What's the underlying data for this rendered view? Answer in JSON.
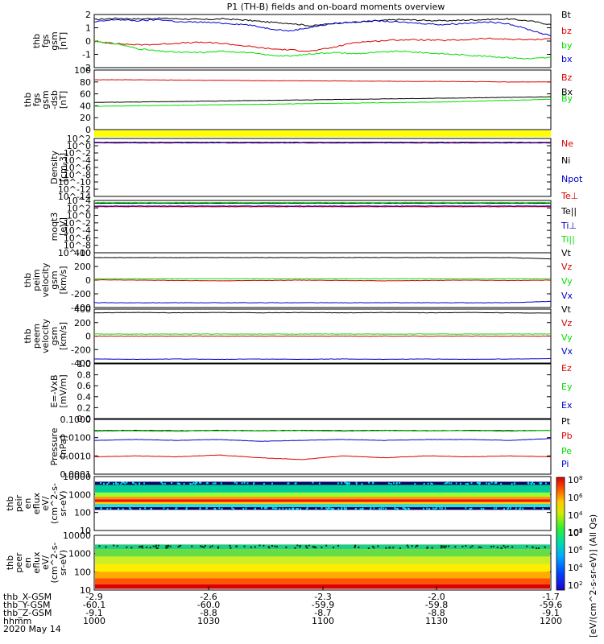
{
  "title": "P1 (TH-B) fields and on-board moments overview",
  "colors": {
    "black": "#000000",
    "red": "#dd0000",
    "green": "#00dd00",
    "blue": "#0000cc",
    "yellow": "#ffff00"
  },
  "x_axis": {
    "rows": [
      {
        "label": "thb_X-GSM",
        "values": [
          "-2.9",
          "-2.6",
          "-2.3",
          "-2.0",
          "-1.7"
        ]
      },
      {
        "label": "thb_Y-GSM",
        "values": [
          "-60.1",
          "-60.0",
          "-59.9",
          "-59.8",
          "-59.6"
        ]
      },
      {
        "label": "thb_Z-GSM",
        "values": [
          "-9.1",
          "-8.8",
          "-8.7",
          "-8.8",
          "-9.1"
        ]
      },
      {
        "label": "hhmm",
        "values": [
          "1000",
          "1030",
          "1100",
          "1130",
          "1200"
        ]
      }
    ],
    "date": "2020 May 14"
  },
  "colorbar": {
    "ticks": [
      "10^8",
      "10^6",
      "10^4",
      "10^2"
    ],
    "label": "[eV/(cm^2-s-sr-eV)] (All Qs)"
  },
  "chart_data": [
    {
      "type": "line",
      "ylabel": [
        "thb",
        "fgs",
        "gsm",
        "[nT]"
      ],
      "ylim": [
        -2,
        2.2
      ],
      "yticks": [
        "2",
        "1",
        "0",
        "-1",
        "-2"
      ],
      "series": [
        {
          "name": "Bt",
          "color": "#000000",
          "values": [
            1.8,
            1.9,
            1.85,
            1.9,
            1.85,
            1.8,
            1.85,
            1.75,
            1.6,
            1.5,
            1.3,
            1.5,
            1.6,
            1.7,
            1.8,
            1.75,
            1.7,
            1.75,
            1.8,
            1.85,
            1.7,
            1.4
          ]
        },
        {
          "name": "bz",
          "color": "#dd0000",
          "values": [
            0.05,
            -0.1,
            -0.2,
            -0.15,
            -0.05,
            0.0,
            -0.1,
            -0.3,
            -0.5,
            -0.6,
            -0.7,
            -0.4,
            0.0,
            0.1,
            0.2,
            0.2,
            0.15,
            0.2,
            0.3,
            0.25,
            0.2,
            0.3
          ]
        },
        {
          "name": "by",
          "color": "#00dd00",
          "values": [
            0.1,
            -0.1,
            -0.5,
            -0.7,
            -0.8,
            -0.8,
            -0.7,
            -0.8,
            -1.0,
            -1.1,
            -0.9,
            -0.8,
            -0.9,
            -0.8,
            -0.7,
            -0.8,
            -0.9,
            -1.0,
            -1.1,
            -1.2,
            -1.3,
            -1.2
          ]
        },
        {
          "name": "bx",
          "color": "#0000cc",
          "values": [
            1.6,
            1.8,
            1.7,
            1.8,
            1.6,
            1.6,
            1.5,
            1.4,
            1.1,
            0.9,
            1.2,
            1.5,
            1.6,
            1.7,
            1.6,
            1.5,
            1.4,
            1.5,
            1.6,
            1.5,
            1.0,
            0.5
          ]
        }
      ]
    },
    {
      "type": "line",
      "ylabel": [
        "thb",
        "fgs",
        "gsm",
        "-dsb",
        "[nT]"
      ],
      "ylim": [
        -10,
        100
      ],
      "yticks": [
        "100",
        "80",
        "60",
        "40",
        "20",
        "0"
      ],
      "series": [
        {
          "name": "Bz",
          "color": "#dd0000",
          "values": [
            82,
            82,
            82,
            81.5,
            81.5,
            81,
            81,
            80.5,
            80.5,
            80,
            80,
            80,
            79.5,
            79.5,
            79,
            79,
            79,
            78.5,
            78.5,
            78,
            78,
            78
          ]
        },
        {
          "name": "Bx",
          "color": "#000000",
          "values": [
            40,
            40.5,
            41,
            41.5,
            42,
            42.5,
            43,
            43.5,
            44,
            44.5,
            45,
            45.5,
            46,
            46.5,
            47,
            47.5,
            48,
            48.5,
            49,
            49.5,
            50,
            50.5
          ]
        },
        {
          "name": "By",
          "color": "#00dd00",
          "values": [
            33,
            33.5,
            34,
            34.5,
            35,
            35.5,
            36,
            36.5,
            37,
            37.5,
            38,
            38.5,
            39,
            39.5,
            40,
            40.5,
            41,
            42,
            43,
            44,
            45,
            46
          ]
        }
      ]
    },
    {
      "type": "line",
      "ylabel": [
        "Density",
        "[cm-3]"
      ],
      "ylim": [
        -16,
        2
      ],
      "yticks": [
        "10^2",
        "10^0",
        "10^-2",
        "10^-4",
        "10^-6",
        "10^-8",
        "10^-10",
        "10^-12",
        "10^-14"
      ],
      "series": [
        {
          "name": "Ne",
          "color": "#dd0000",
          "values": [
            0.6,
            0.6,
            0.6,
            0.6,
            0.6,
            0.6,
            0.6,
            0.6,
            0.6,
            0.6,
            0.6,
            0.6
          ]
        },
        {
          "name": "Ni",
          "color": "#000000",
          "values": [
            0.8,
            0.8,
            0.8,
            0.8,
            0.8,
            0.8,
            0.8,
            0.8,
            0.8,
            0.8,
            0.8,
            0.8
          ]
        },
        {
          "name": "Npot",
          "color": "#0000cc",
          "values": [
            0.7,
            0.7,
            0.7,
            0.7,
            0.7,
            0.7,
            0.7,
            0.7,
            0.7,
            0.7,
            0.7,
            0.7
          ]
        }
      ]
    },
    {
      "type": "line",
      "ylabel": [
        "moqt3",
        "[eV]"
      ],
      "ylim": [
        -11,
        4
      ],
      "yticks": [
        "10^4",
        "10^2",
        "10^0",
        "10^-2",
        "10^-4",
        "10^-6",
        "10^-8",
        "10^-10"
      ],
      "series": [
        {
          "name": "Te⊥",
          "color": "#dd0000",
          "values": [
            2.2,
            2.2,
            2.2,
            2.2,
            2.2,
            2.2,
            2.2,
            2.2,
            2.2,
            2.2,
            2.2,
            2.2
          ]
        },
        {
          "name": "Te||",
          "color": "#000000",
          "values": [
            3.2,
            3.2,
            3.2,
            3.2,
            3.2,
            3.2,
            3.2,
            3.2,
            3.2,
            3.2,
            3.2,
            3.2
          ]
        },
        {
          "name": "Ti⊥",
          "color": "#0000cc",
          "values": [
            2.4,
            2.4,
            2.4,
            2.4,
            2.4,
            2.4,
            2.4,
            2.4,
            2.4,
            2.4,
            2.4,
            2.4
          ]
        },
        {
          "name": "Ti||",
          "color": "#00dd00",
          "values": [
            3.4,
            3.4,
            3.4,
            3.4,
            3.4,
            3.4,
            3.4,
            3.4,
            3.4,
            3.4,
            3.4,
            3.4
          ]
        }
      ]
    },
    {
      "type": "line",
      "ylabel": [
        "thb",
        "peim",
        "velocity",
        "gsm",
        "[km/s]"
      ],
      "ylim": [
        -400,
        400
      ],
      "yticks": [
        "400",
        "200",
        "0",
        "-200",
        "-400"
      ],
      "series": [
        {
          "name": "Vt",
          "color": "#000000",
          "values": [
            330,
            330,
            330,
            330,
            330,
            330,
            330,
            330,
            330,
            330,
            330,
            310
          ]
        },
        {
          "name": "Vz",
          "color": "#dd0000",
          "values": [
            5,
            0,
            -5,
            -10,
            -5,
            0,
            -5,
            -10,
            -5,
            0,
            -5,
            0
          ]
        },
        {
          "name": "Vy",
          "color": "#00dd00",
          "values": [
            20,
            20,
            20,
            20,
            20,
            20,
            20,
            20,
            20,
            20,
            20,
            20
          ]
        },
        {
          "name": "Vx",
          "color": "#0000cc",
          "values": [
            -330,
            -330,
            -330,
            -330,
            -330,
            -330,
            -330,
            -330,
            -330,
            -330,
            -330,
            -310
          ]
        }
      ]
    },
    {
      "type": "line",
      "ylabel": [
        "thb",
        "peem",
        "velocity",
        "gsm",
        "[km/s]"
      ],
      "ylim": [
        -400,
        400
      ],
      "yticks": [
        "400",
        "200",
        "0",
        "-200",
        "-400"
      ],
      "series": [
        {
          "name": "Vt",
          "color": "#000000",
          "values": [
            345,
            350,
            345,
            350,
            345,
            350,
            345,
            350,
            345,
            350,
            345,
            340
          ]
        },
        {
          "name": "Vz",
          "color": "#dd0000",
          "values": [
            0,
            0,
            0,
            0,
            0,
            0,
            0,
            0,
            0,
            0,
            0,
            0
          ]
        },
        {
          "name": "Vy",
          "color": "#00dd00",
          "values": [
            30,
            30,
            30,
            30,
            30,
            30,
            30,
            30,
            30,
            30,
            30,
            30
          ]
        },
        {
          "name": "Vx",
          "color": "#0000cc",
          "values": [
            -340,
            -345,
            -340,
            -345,
            -340,
            -345,
            -340,
            -345,
            -340,
            -345,
            -340,
            -335
          ]
        }
      ]
    },
    {
      "type": "line",
      "ylabel": [
        "E=-VxB",
        "[mV/m]"
      ],
      "ylim": [
        0,
        1
      ],
      "yticks": [
        "1.0",
        "0.8",
        "0.6",
        "0.4",
        "0.2",
        "0.0"
      ],
      "series": [
        {
          "name": "Ez",
          "color": "#dd0000",
          "values": []
        },
        {
          "name": "Ey",
          "color": "#00dd00",
          "values": []
        },
        {
          "name": "Ex",
          "color": "#0000cc",
          "values": []
        }
      ]
    },
    {
      "type": "line",
      "ylabel": [
        "Pressure",
        "[nPa]"
      ],
      "ylim": [
        -4,
        -1
      ],
      "yticks": [
        "0.1000",
        "0.0100",
        "0.0010",
        "0.0001"
      ],
      "series": [
        {
          "name": "Pt",
          "color": "#000000",
          "values": [
            -1.62,
            -1.6,
            -1.62,
            -1.6,
            -1.62,
            -1.6,
            -1.62,
            -1.6,
            -1.62,
            -1.6,
            -1.62,
            -1.6
          ]
        },
        {
          "name": "Pb",
          "color": "#dd0000",
          "values": [
            -3.05,
            -3.0,
            -3.05,
            -2.95,
            -3.1,
            -3.2,
            -3.0,
            -3.1,
            -3.0,
            -3.05,
            -3.0,
            -3.05
          ]
        },
        {
          "name": "Pe",
          "color": "#00dd00",
          "values": [
            -1.65,
            -1.63,
            -1.65,
            -1.62,
            -1.64,
            -1.62,
            -1.65,
            -1.62,
            -1.64,
            -1.62,
            -1.65,
            -1.6
          ]
        },
        {
          "name": "Pi",
          "color": "#0000cc",
          "values": [
            -2.15,
            -2.1,
            -2.15,
            -2.1,
            -2.2,
            -2.15,
            -2.1,
            -2.15,
            -2.1,
            -2.1,
            -2.15,
            -2.05
          ]
        }
      ]
    },
    {
      "type": "heatmap",
      "ylabel": [
        "thb",
        "peir",
        "en",
        "eflux",
        "eV/",
        "(cm^2-s-",
        "sr-eV)"
      ],
      "ylim": [
        5,
        20000
      ],
      "yticks": [
        "10000",
        "1000",
        "100",
        "10"
      ],
      "bands": [
        {
          "from": 5500,
          "to": 9000,
          "level": "speckled",
          "color": "#000066"
        },
        {
          "from": 1700,
          "to": 5500,
          "level": "2-4",
          "color": "#00cc99"
        },
        {
          "from": 900,
          "to": 1700,
          "level": "4-5",
          "color": "#99ff33"
        },
        {
          "from": 600,
          "to": 900,
          "level": "5-6",
          "color": "#ff9900"
        },
        {
          "from": 400,
          "to": 600,
          "level": "6-7",
          "color": "#ee1111"
        },
        {
          "from": 300,
          "to": 400,
          "level": "5-6",
          "color": "#ffcc00"
        },
        {
          "from": 180,
          "to": 300,
          "level": "3-4",
          "color": "#33ddcc"
        },
        {
          "from": 120,
          "to": 180,
          "level": "speckled",
          "color": "#000066"
        }
      ]
    },
    {
      "type": "heatmap",
      "ylabel": [
        "thb",
        "peer",
        "en",
        "eflux",
        "eV/",
        "(cm^2-s-",
        "sr-eV)"
      ],
      "ylim": [
        5,
        20000
      ],
      "yticks": [
        "10000",
        "1000",
        "100",
        "10"
      ],
      "bands": [
        {
          "from": 2500,
          "to": 5000,
          "level": "speckled",
          "color": "#22cc88"
        },
        {
          "from": 800,
          "to": 2500,
          "level": "4-5",
          "color": "#66dd44"
        },
        {
          "from": 250,
          "to": 800,
          "level": "5",
          "color": "#ccee22"
        },
        {
          "from": 80,
          "to": 250,
          "level": "5-6",
          "color": "#ffee00"
        },
        {
          "from": 30,
          "to": 80,
          "level": "6",
          "color": "#ffaa00"
        },
        {
          "from": 12,
          "to": 30,
          "level": "7",
          "color": "#ff5500"
        },
        {
          "from": 6,
          "to": 12,
          "level": "8",
          "color": "#dd0000"
        }
      ]
    }
  ]
}
